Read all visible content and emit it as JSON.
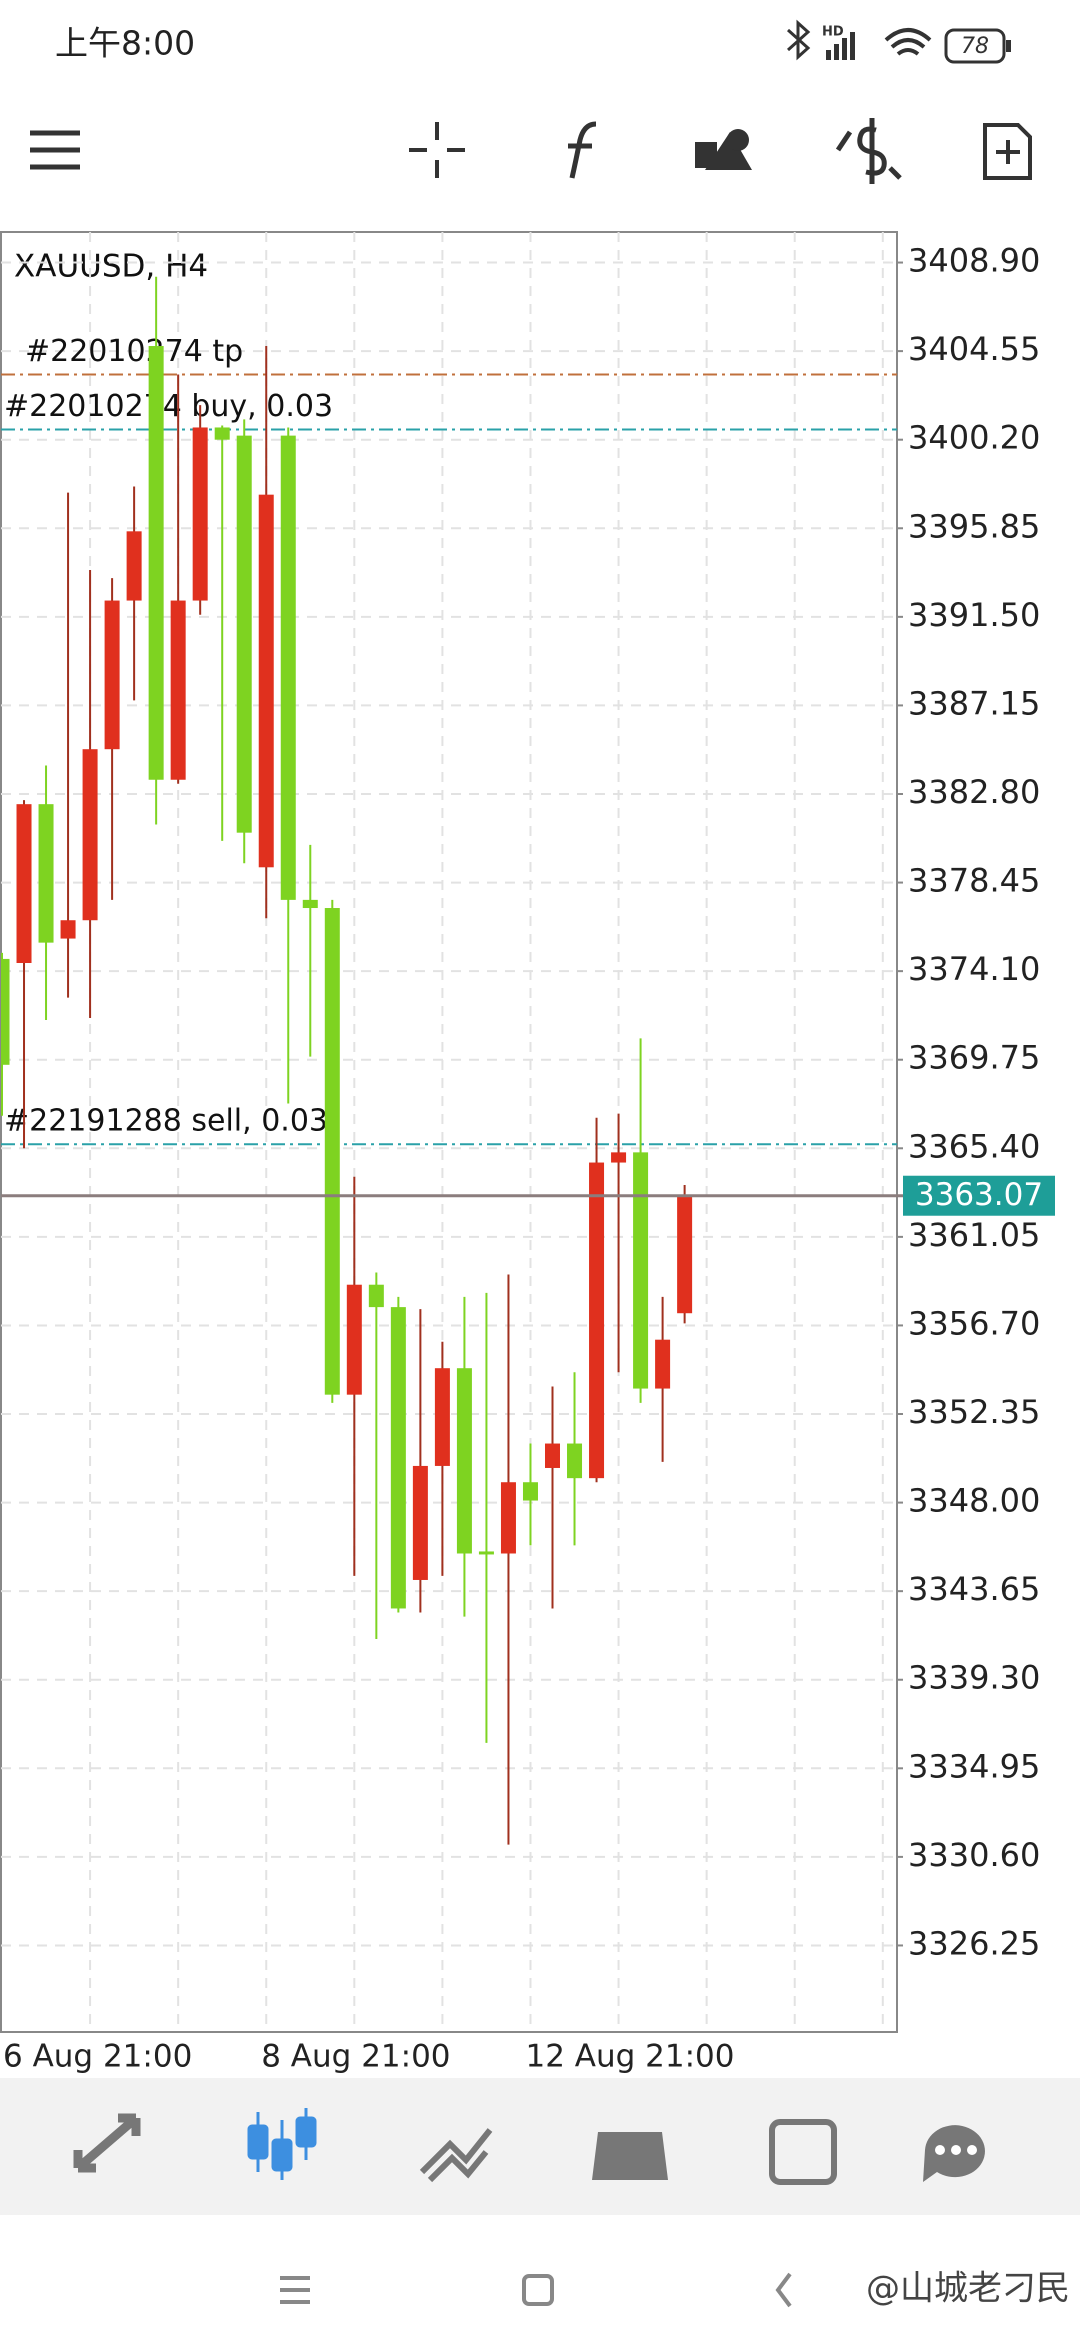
{
  "status_bar": {
    "time": "上午8:00",
    "network": "HD",
    "battery": "78"
  },
  "chart_data": {
    "type": "candlestick",
    "title": "XAUUSD, H4",
    "categories": [
      "6 Aug 21:00",
      null,
      null,
      null,
      null,
      null,
      null,
      null,
      null,
      null,
      null,
      null,
      "8 Aug 21:00",
      null,
      null,
      null,
      null,
      null,
      null,
      null,
      null,
      null,
      null,
      null,
      "12 Aug 21:00",
      null,
      null,
      null,
      null,
      null,
      null,
      null
    ],
    "open": [
      3374.7,
      3374.5,
      3382.3,
      3375.7,
      3376.6,
      3385.0,
      3392.3,
      3404.8,
      3383.5,
      3392.3,
      3400.8,
      3400.4,
      3379.2,
      3400.4,
      3377.6,
      3377.2,
      3353.3,
      3358.7,
      3357.6,
      3344.2,
      3349.8,
      3354.6,
      3345.6,
      3345.5,
      3349.0,
      3349.7,
      3350.9,
      3349.2,
      3364.7,
      3365.2,
      3353.6,
      3357.3
    ],
    "high": [
      3375.0,
      3382.5,
      3384.2,
      3397.6,
      3393.8,
      3393.4,
      3397.9,
      3408.2,
      3403.4,
      3401.9,
      3400.9,
      3401.2,
      3404.8,
      3400.8,
      3380.3,
      3377.6,
      3364.0,
      3359.3,
      3358.1,
      3357.5,
      3355.9,
      3358.1,
      3358.3,
      3359.2,
      3350.9,
      3353.7,
      3354.4,
      3366.9,
      3367.1,
      3370.8,
      3358.1,
      3363.6
    ],
    "low": [
      3367.0,
      3365.4,
      3371.7,
      3372.8,
      3371.8,
      3377.6,
      3387.4,
      3381.3,
      3383.3,
      3391.6,
      3380.5,
      3379.4,
      3376.7,
      3367.6,
      3369.9,
      3352.9,
      3344.4,
      3341.3,
      3342.6,
      3342.6,
      3344.4,
      3342.4,
      3336.2,
      3331.2,
      3345.9,
      3342.8,
      3345.9,
      3349.0,
      3354.4,
      3352.9,
      3350.0,
      3356.8
    ],
    "close": [
      3369.5,
      3382.3,
      3375.5,
      3376.6,
      3385.0,
      3392.3,
      3395.7,
      3383.5,
      3392.3,
      3400.8,
      3400.2,
      3380.9,
      3397.5,
      3377.6,
      3377.2,
      3353.3,
      3358.7,
      3357.6,
      3342.8,
      3349.8,
      3354.6,
      3345.5,
      3345.5,
      3349.0,
      3348.1,
      3350.9,
      3349.2,
      3364.7,
      3365.2,
      3353.6,
      3356.0,
      3363.1
    ],
    "up_color": "#e0301e",
    "down_color": "#7ed321",
    "ylim": [
      3322,
      3410.4
    ],
    "yticks": [
      {
        "value": 3408.9,
        "label": "3408.90"
      },
      3404.55,
      {
        "value": 3400.2,
        "label": "3400.20"
      },
      3395.85,
      {
        "value": 3391.5,
        "label": "3391.50"
      },
      3387.15,
      {
        "value": 3382.8,
        "label": "3382.80"
      },
      3378.45,
      {
        "value": 3374.1,
        "label": "3374.10"
      },
      3369.75,
      {
        "value": 3365.4,
        "label": "3365.40"
      },
      3361.05,
      {
        "value": 3356.7,
        "label": "3356.70"
      },
      3352.35,
      {
        "value": 3348,
        "label": "3348.00"
      },
      3343.65,
      {
        "value": 3339.3,
        "label": "3339.30"
      },
      3334.95,
      {
        "value": 3330.6,
        "label": "3330.60"
      },
      3326.25
    ],
    "grid": true,
    "lines": [
      {
        "label": "#22010274 tp",
        "value": 3403.4,
        "color": "#c0703c"
      },
      {
        "label": "#22010274 buy, 0.03",
        "value": 3400.7,
        "color": "#2aa1a8"
      },
      {
        "label": "#22191288 sell, 0.03",
        "value": 3365.6,
        "color": "#2aa1a8"
      }
    ],
    "current_price": {
      "value": 3363.07,
      "color": "#1e9e98"
    }
  },
  "watermark": "@山城老刁民"
}
